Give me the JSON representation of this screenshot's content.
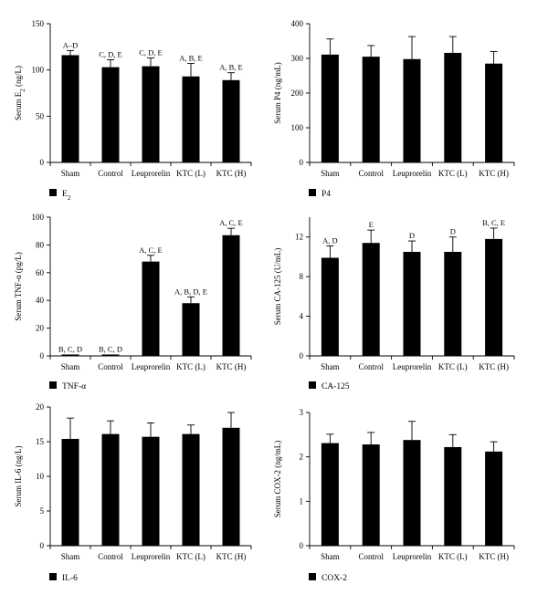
{
  "chart_data": [
    {
      "type": "bar",
      "ylabel": "Serum E",
      "ylabel_sub": "2",
      "ylabel_unit": " (ng/L)",
      "ylim": [
        0,
        150
      ],
      "yticks": [
        0,
        50,
        100,
        150
      ],
      "categories": [
        "Sham",
        "Control",
        "Leuprorelin",
        "KTC (L)",
        "KTC (H)"
      ],
      "values": [
        116,
        103,
        104,
        93,
        89
      ],
      "errors": [
        5,
        8,
        9,
        14,
        8
      ],
      "annotations": [
        "A–D",
        "C, D, E",
        "C, D, E",
        "A, B, E",
        "A, B, E"
      ],
      "legend": "E",
      "legend_sub": "2",
      "bar_color": "#000000"
    },
    {
      "type": "bar",
      "ylabel": "Serum P4 (ng/mL)",
      "ylim": [
        0,
        400
      ],
      "yticks": [
        0,
        100,
        200,
        300,
        400
      ],
      "categories": [
        "Sham",
        "Control",
        "Leuprorelin",
        "KTC (L)",
        "KTC (H)"
      ],
      "values": [
        311,
        305,
        298,
        316,
        285
      ],
      "errors": [
        45,
        32,
        65,
        47,
        35
      ],
      "annotations": [
        "",
        "",
        "",
        "",
        ""
      ],
      "legend": "P4",
      "bar_color": "#000000"
    },
    {
      "type": "bar",
      "ylabel": "Serum TNF-α (pg/L)",
      "ylim": [
        0,
        100
      ],
      "yticks": [
        0,
        20,
        40,
        60,
        80,
        100
      ],
      "categories": [
        "Sham",
        "Control",
        "Leuprorelin",
        "KTC (L)",
        "KTC (H)"
      ],
      "values": [
        1,
        1,
        68,
        38,
        87
      ],
      "errors": [
        0,
        0,
        4.5,
        4.5,
        5
      ],
      "annotations": [
        "B, C, D",
        "B, C, D",
        "A, C, E",
        "A, B, D, E",
        "A, C, E"
      ],
      "legend": "TNF-α",
      "bar_color": "#000000"
    },
    {
      "type": "bar",
      "ylabel": "Serum CA-125 (U/mL)",
      "ylim": [
        0,
        14
      ],
      "yticks": [
        0,
        4,
        8,
        12
      ],
      "categories": [
        "Sham",
        "Control",
        "Leuprorelin",
        "KTC (L)",
        "KTC (H)"
      ],
      "values": [
        9.9,
        11.4,
        10.5,
        10.5,
        11.8
      ],
      "errors": [
        1.2,
        1.3,
        1.1,
        1.5,
        1.1
      ],
      "annotations": [
        "A, D",
        "E",
        "D",
        "D",
        "B, C, E"
      ],
      "legend": "CA-125",
      "bar_color": "#000000"
    },
    {
      "type": "bar",
      "ylabel": "Serum IL-6 (ng/L)",
      "ylim": [
        0,
        20
      ],
      "yticks": [
        0,
        5,
        10,
        15,
        20
      ],
      "categories": [
        "Sham",
        "Control",
        "Leuprorelin",
        "KTC (L)",
        "KTC (H)"
      ],
      "values": [
        15.4,
        16.1,
        15.7,
        16.1,
        17.0
      ],
      "errors": [
        3.0,
        1.9,
        2.0,
        1.3,
        2.2
      ],
      "annotations": [
        "",
        "",
        "",
        "",
        ""
      ],
      "legend": "IL-6",
      "bar_color": "#000000"
    },
    {
      "type": "bar",
      "ylabel": "Serum COX-2 (ng/mL)",
      "ylim": [
        0,
        3
      ],
      "yticks": [
        0,
        1,
        2,
        3
      ],
      "categories": [
        "Sham",
        "Control",
        "Leuprorelin",
        "KTC (L)",
        "KTC (H)"
      ],
      "values": [
        2.31,
        2.28,
        2.38,
        2.22,
        2.12
      ],
      "errors": [
        0.2,
        0.27,
        0.42,
        0.28,
        0.22
      ],
      "annotations": [
        "",
        "",
        "",
        "",
        ""
      ],
      "legend": "COX-2",
      "bar_color": "#000000"
    }
  ]
}
